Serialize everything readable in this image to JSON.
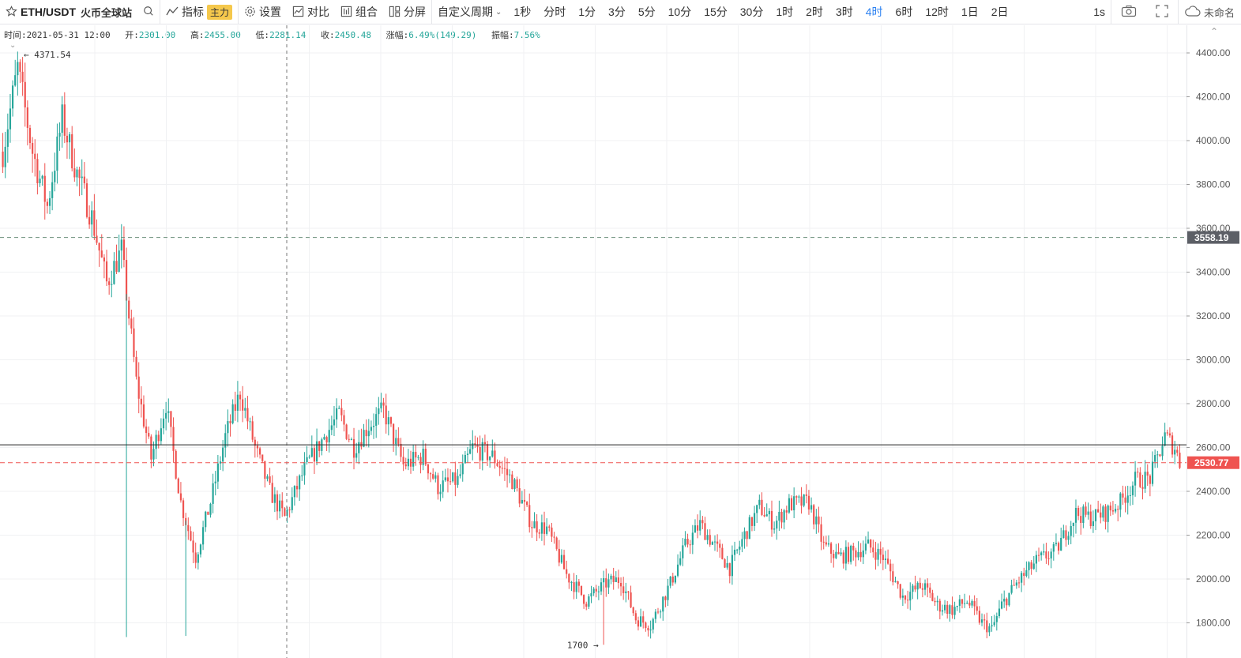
{
  "toolbar": {
    "star_icon": "star-icon",
    "symbol": "ETH/USDT",
    "exchange": "火币全球站",
    "indicators_label": "指标",
    "main_badge": "主力",
    "settings_label": "设置",
    "compare_label": "对比",
    "combo_label": "组合",
    "split_label": "分屏",
    "custom_period_label": "自定义周期",
    "periods": [
      "1秒",
      "分时",
      "1分",
      "3分",
      "5分",
      "10分",
      "15分",
      "30分",
      "1时",
      "2时",
      "3时",
      "4时",
      "6时",
      "12时",
      "1日",
      "2日"
    ],
    "active_period": "4时",
    "interval_label": "1s",
    "user_label": "未命名"
  },
  "info": {
    "time_label": "时间:",
    "time_value": "2021-05-31 12:00",
    "open_label": "开:",
    "open_value": "2301.00",
    "high_label": "高:",
    "high_value": "2455.00",
    "low_label": "低:",
    "low_value": "2281.14",
    "close_label": "收:",
    "close_value": "2450.48",
    "change_label": "涨幅:",
    "change_value": "6.49%(149.29)",
    "amp_label": "振幅:",
    "amp_value": "7.56%"
  },
  "chart_data": {
    "type": "candlestick",
    "symbol": "ETH/USDT",
    "interval": "4时",
    "y_ticks": [
      1800,
      2000,
      2200,
      2400,
      2600,
      2800,
      3000,
      3200,
      3400,
      3600,
      3800,
      4000,
      4200,
      4400
    ],
    "y_tick_labels": [
      "1800.00",
      "2000.00",
      "2200.00",
      "2400.00",
      "2600.00",
      "2800.00",
      "3000.00",
      "3200.00",
      "3400.00",
      "3600.00",
      "3800.00",
      "4000.00",
      "4200.00",
      "4400.00"
    ],
    "ylim": [
      1650,
      4480
    ],
    "bar_count": 500,
    "up_color": "#26a69a",
    "down_color": "#ef5350",
    "max_annotation": {
      "label": "4371.54",
      "value": 4371.54
    },
    "min_annotation": {
      "label": "1700",
      "value": 1700
    },
    "crosshair_price": {
      "label": "3558.19",
      "value": 3558.19
    },
    "last_price": {
      "label": "2530.77",
      "value": 2530.77
    },
    "horizontal_line": {
      "value": 2612
    },
    "trend_keypoints": [
      [
        0,
        3950
      ],
      [
        6,
        4330
      ],
      [
        12,
        3950
      ],
      [
        18,
        3700
      ],
      [
        24,
        4100
      ],
      [
        30,
        3850
      ],
      [
        36,
        3650
      ],
      [
        42,
        3350
      ],
      [
        48,
        3500
      ],
      [
        54,
        2900
      ],
      [
        60,
        2550
      ],
      [
        66,
        2800
      ],
      [
        72,
        2350
      ],
      [
        78,
        2100
      ],
      [
        84,
        2350
      ],
      [
        90,
        2650
      ],
      [
        96,
        2850
      ],
      [
        102,
        2600
      ],
      [
        108,
        2400
      ],
      [
        114,
        2280
      ],
      [
        122,
        2500
      ],
      [
        130,
        2650
      ],
      [
        136,
        2750
      ],
      [
        142,
        2600
      ],
      [
        148,
        2700
      ],
      [
        154,
        2770
      ],
      [
        162,
        2520
      ],
      [
        170,
        2560
      ],
      [
        176,
        2420
      ],
      [
        184,
        2450
      ],
      [
        190,
        2600
      ],
      [
        198,
        2560
      ],
      [
        206,
        2450
      ],
      [
        214,
        2250
      ],
      [
        220,
        2230
      ],
      [
        228,
        2020
      ],
      [
        236,
        1900
      ],
      [
        244,
        1980
      ],
      [
        250,
        2000
      ],
      [
        256,
        1820
      ],
      [
        262,
        1790
      ],
      [
        270,
        1980
      ],
      [
        276,
        2150
      ],
      [
        282,
        2250
      ],
      [
        288,
        2150
      ],
      [
        294,
        2050
      ],
      [
        300,
        2200
      ],
      [
        306,
        2330
      ],
      [
        312,
        2250
      ],
      [
        318,
        2340
      ],
      [
        326,
        2350
      ],
      [
        332,
        2150
      ],
      [
        338,
        2100
      ],
      [
        344,
        2120
      ],
      [
        350,
        2150
      ],
      [
        356,
        2100
      ],
      [
        364,
        1920
      ],
      [
        372,
        1970
      ],
      [
        378,
        1880
      ],
      [
        384,
        1860
      ],
      [
        390,
        1900
      ],
      [
        396,
        1800
      ],
      [
        400,
        1770
      ],
      [
        404,
        1880
      ],
      [
        410,
        1980
      ],
      [
        418,
        2080
      ],
      [
        426,
        2130
      ],
      [
        434,
        2300
      ],
      [
        440,
        2280
      ],
      [
        446,
        2300
      ],
      [
        452,
        2350
      ],
      [
        458,
        2450
      ],
      [
        464,
        2460
      ],
      [
        470,
        2650
      ],
      [
        474,
        2600
      ],
      [
        476,
        2530
      ]
    ]
  }
}
